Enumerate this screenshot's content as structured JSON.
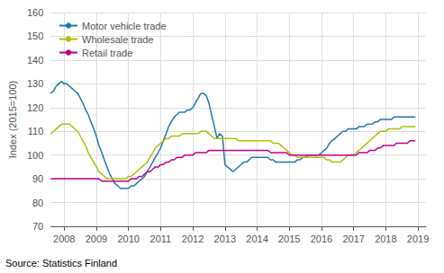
{
  "chart_data": {
    "type": "line",
    "ylabel": "Index (2015=100)",
    "source": "Source: Statistics Finland",
    "xlim": [
      2007.58,
      2019.25
    ],
    "ylim": [
      70,
      160
    ],
    "xticks": [
      2008,
      2009,
      2010,
      2011,
      2012,
      2013,
      2014,
      2015,
      2016,
      2017,
      2018,
      2019
    ],
    "yticks": [
      70,
      80,
      90,
      100,
      110,
      120,
      130,
      140,
      150,
      160
    ],
    "grid": true,
    "legend": "upper left",
    "x": [
      2007.58,
      2007.67,
      2007.75,
      2007.83,
      2007.92,
      2008.0,
      2008.08,
      2008.17,
      2008.25,
      2008.33,
      2008.42,
      2008.5,
      2008.58,
      2008.67,
      2008.75,
      2008.83,
      2008.92,
      2009.0,
      2009.08,
      2009.17,
      2009.25,
      2009.33,
      2009.42,
      2009.5,
      2009.58,
      2009.67,
      2009.75,
      2009.83,
      2009.92,
      2010.0,
      2010.08,
      2010.17,
      2010.25,
      2010.33,
      2010.42,
      2010.5,
      2010.58,
      2010.67,
      2010.75,
      2010.83,
      2010.92,
      2011.0,
      2011.08,
      2011.17,
      2011.25,
      2011.33,
      2011.42,
      2011.5,
      2011.58,
      2011.67,
      2011.75,
      2011.83,
      2011.92,
      2012.0,
      2012.08,
      2012.17,
      2012.25,
      2012.33,
      2012.42,
      2012.5,
      2012.58,
      2012.67,
      2012.75,
      2012.83,
      2012.92,
      2013.0,
      2013.08,
      2013.17,
      2013.25,
      2013.33,
      2013.42,
      2013.5,
      2013.58,
      2013.67,
      2013.75,
      2013.83,
      2013.92,
      2014.0,
      2014.08,
      2014.17,
      2014.25,
      2014.33,
      2014.42,
      2014.5,
      2014.58,
      2014.67,
      2014.75,
      2014.83,
      2014.92,
      2015.0,
      2015.08,
      2015.17,
      2015.25,
      2015.33,
      2015.42,
      2015.5,
      2015.58,
      2015.67,
      2015.75,
      2015.83,
      2015.92,
      2016.0,
      2016.08,
      2016.17,
      2016.25,
      2016.33,
      2016.42,
      2016.5,
      2016.58,
      2016.67,
      2016.75,
      2016.83,
      2016.92,
      2017.0,
      2017.08,
      2017.17,
      2017.25,
      2017.33,
      2017.42,
      2017.5,
      2017.58,
      2017.67,
      2017.75,
      2017.83,
      2017.92,
      2018.0,
      2018.08,
      2018.17,
      2018.25,
      2018.33,
      2018.42,
      2018.5,
      2018.58,
      2018.67,
      2018.75,
      2018.83,
      2018.92
    ],
    "series": [
      {
        "name": "Motor vehicle trade",
        "color": "#2176ae",
        "values": [
          126,
          127,
          129,
          130,
          131,
          130,
          130,
          129,
          128,
          127,
          126,
          124,
          122,
          119,
          117,
          114,
          111,
          108,
          104,
          101,
          98,
          95,
          92,
          90,
          88,
          87,
          86,
          86,
          86,
          86,
          87,
          87,
          88,
          89,
          90,
          91,
          93,
          95,
          97,
          99,
          101,
          103,
          106,
          109,
          112,
          114,
          116,
          117,
          118,
          118,
          118,
          119,
          119,
          120,
          122,
          124,
          126,
          126,
          125,
          122,
          117,
          112,
          107,
          109,
          108,
          96,
          95,
          94,
          93,
          94,
          95,
          96,
          97,
          97,
          98,
          99,
          99,
          99,
          99,
          99,
          99,
          99,
          98,
          98,
          97,
          97,
          97,
          97,
          97,
          97,
          97,
          97,
          98,
          98,
          99,
          99,
          100,
          100,
          100,
          100,
          100,
          101,
          102,
          103,
          105,
          106,
          107,
          108,
          109,
          110,
          110,
          111,
          111,
          111,
          111,
          112,
          112,
          112,
          113,
          113,
          113,
          114,
          114,
          115,
          115,
          115,
          115,
          115,
          116,
          116,
          116,
          116,
          116,
          116,
          116,
          116,
          116
        ]
      },
      {
        "name": "Wholesale trade",
        "color": "#b5bd00",
        "values": [
          109,
          110,
          111,
          112,
          113,
          113,
          113,
          113,
          112,
          111,
          110,
          108,
          106,
          104,
          101,
          99,
          97,
          95,
          93,
          92,
          91,
          90,
          90,
          90,
          90,
          90,
          90,
          90,
          90,
          91,
          91,
          92,
          93,
          94,
          95,
          96,
          97,
          99,
          101,
          103,
          104,
          105,
          106,
          107,
          107,
          108,
          108,
          108,
          108,
          109,
          109,
          109,
          109,
          109,
          109,
          109,
          110,
          110,
          110,
          109,
          108,
          107,
          107,
          107,
          107,
          107,
          107,
          107,
          107,
          107,
          106,
          106,
          106,
          106,
          106,
          106,
          106,
          106,
          106,
          106,
          106,
          106,
          106,
          105,
          105,
          105,
          104,
          103,
          102,
          101,
          100,
          100,
          99,
          99,
          99,
          99,
          99,
          99,
          99,
          99,
          99,
          99,
          99,
          98,
          98,
          97,
          97,
          97,
          97,
          98,
          99,
          100,
          100,
          100,
          101,
          102,
          103,
          104,
          105,
          106,
          107,
          108,
          109,
          110,
          110,
          110,
          111,
          111,
          111,
          111,
          111,
          112,
          112,
          112,
          112,
          112,
          112
        ]
      },
      {
        "name": "Retail trade",
        "color": "#c0008a",
        "values": [
          90,
          90,
          90,
          90,
          90,
          90,
          90,
          90,
          90,
          90,
          90,
          90,
          90,
          90,
          90,
          90,
          90,
          90,
          90,
          89,
          89,
          89,
          89,
          89,
          89,
          89,
          89,
          89,
          89,
          89,
          90,
          90,
          90,
          91,
          91,
          92,
          93,
          93,
          94,
          95,
          95,
          96,
          96,
          97,
          97,
          98,
          98,
          99,
          99,
          99,
          100,
          100,
          100,
          100,
          101,
          101,
          101,
          101,
          101,
          102,
          102,
          102,
          102,
          102,
          102,
          102,
          102,
          102,
          102,
          102,
          102,
          102,
          102,
          102,
          102,
          102,
          102,
          102,
          102,
          102,
          102,
          102,
          101,
          101,
          101,
          101,
          101,
          101,
          101,
          100,
          100,
          100,
          100,
          100,
          100,
          100,
          100,
          100,
          100,
          100,
          100,
          100,
          100,
          100,
          100,
          100,
          100,
          100,
          100,
          100,
          100,
          100,
          100,
          100,
          100,
          101,
          101,
          101,
          101,
          102,
          102,
          102,
          103,
          103,
          104,
          104,
          104,
          104,
          104,
          105,
          105,
          105,
          105,
          105,
          106,
          106,
          106
        ]
      }
    ]
  }
}
